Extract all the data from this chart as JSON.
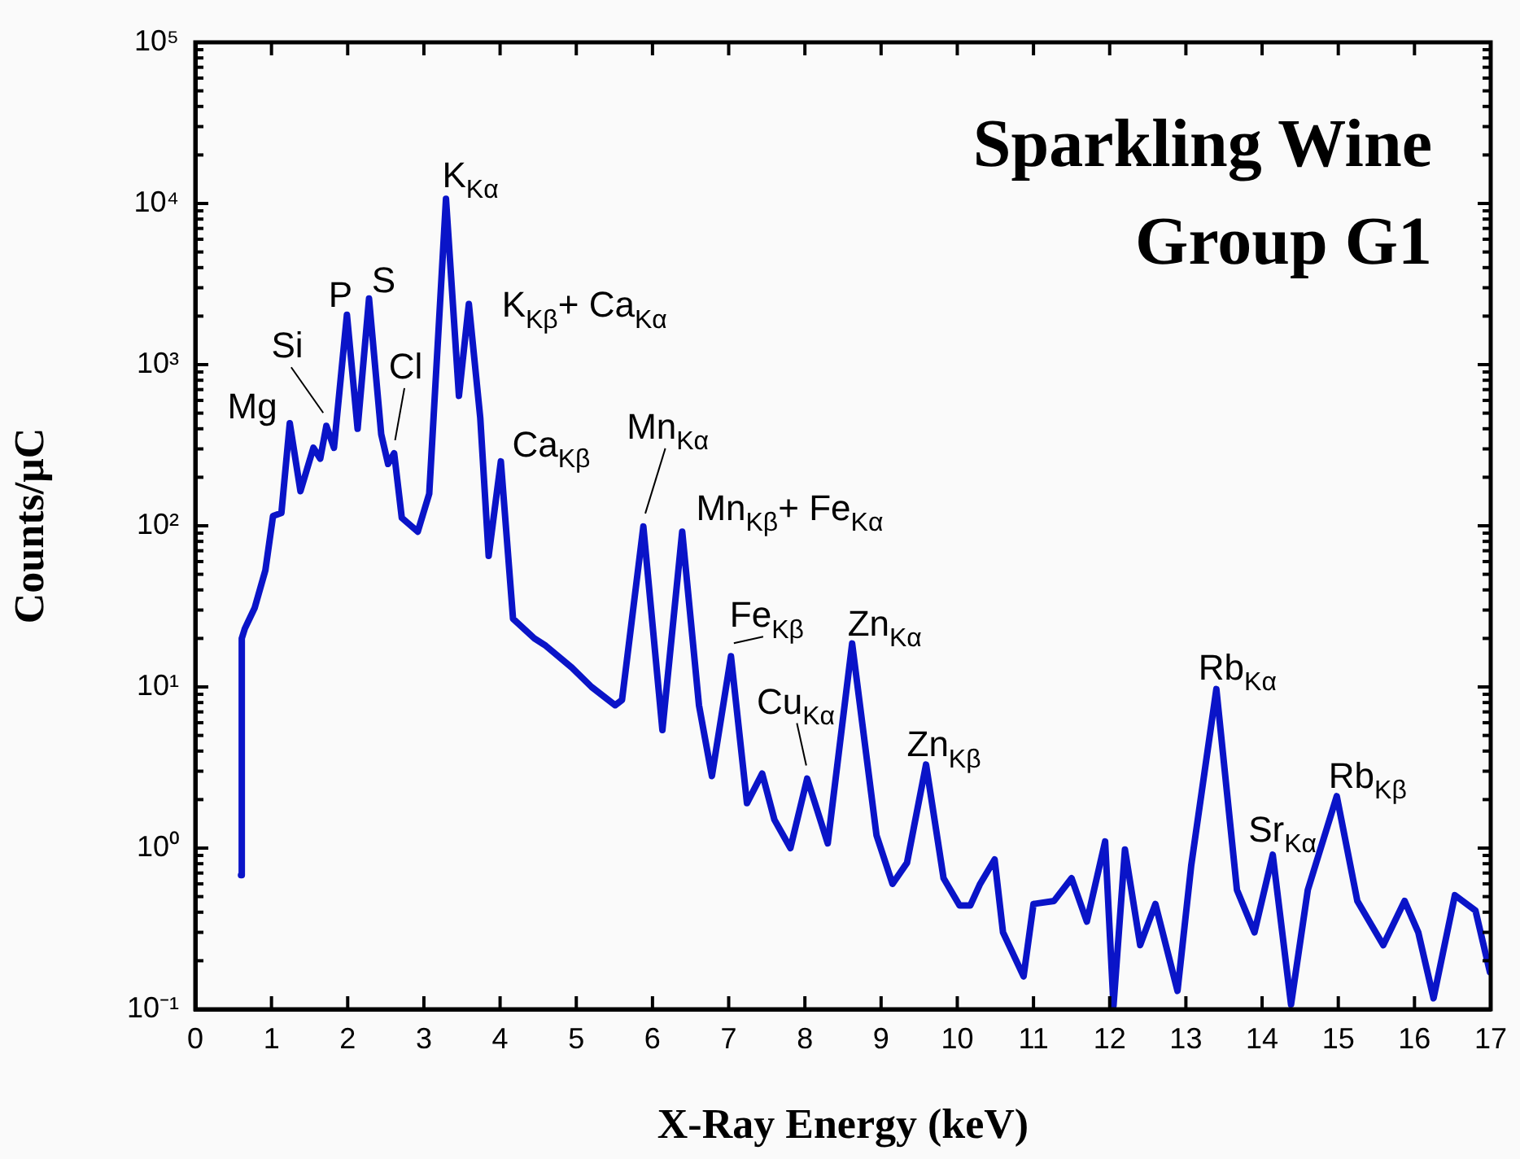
{
  "chart_data": {
    "type": "line",
    "title": "Sparkling Wine",
    "subtitle": "Group G1",
    "xlabel": "X-Ray Energy (keV)",
    "ylabel": "Counts/μC",
    "x": [
      0.6,
      0.61,
      0.65,
      0.78,
      0.92,
      1.02,
      1.13,
      1.24,
      1.38,
      1.55,
      1.64,
      1.72,
      1.82,
      1.99,
      2.13,
      2.28,
      2.44,
      2.53,
      2.61,
      2.71,
      2.92,
      3.07,
      3.29,
      3.46,
      3.59,
      3.74,
      3.85,
      4.01,
      4.17,
      4.45,
      4.6,
      4.94,
      5.2,
      5.51,
      5.6,
      5.88,
      6.13,
      6.39,
      6.61,
      6.78,
      7.03,
      7.24,
      7.44,
      7.6,
      7.81,
      8.03,
      8.3,
      8.62,
      8.94,
      9.15,
      9.34,
      9.59,
      9.82,
      10.03,
      10.17,
      10.3,
      10.49,
      10.6,
      10.87,
      11.0,
      11.27,
      11.5,
      11.7,
      11.94,
      12.05,
      12.2,
      12.4,
      12.6,
      12.89,
      13.07,
      13.4,
      13.67,
      13.9,
      14.14,
      14.38,
      14.6,
      14.98,
      15.25,
      15.59,
      15.87,
      16.05,
      16.25,
      16.53,
      16.8,
      16.99
    ],
    "series": [
      {
        "color": "#0a14c8",
        "values": [
          0.68,
          20,
          23,
          31,
          53,
          115,
          120,
          433,
          164,
          305,
          261,
          417,
          305,
          2040,
          400,
          2570,
          370,
          242,
          282,
          112,
          92,
          158,
          10700,
          640,
          2380,
          466,
          65,
          251,
          26.5,
          20,
          18,
          13.2,
          10,
          7.7,
          8.3,
          99,
          5.4,
          92,
          7.7,
          2.8,
          15.5,
          1.9,
          2.9,
          1.5,
          1.0,
          2.7,
          1.07,
          18.6,
          1.2,
          0.6,
          0.81,
          3.3,
          0.65,
          0.44,
          0.44,
          0.6,
          0.85,
          0.3,
          0.16,
          0.45,
          0.47,
          0.65,
          0.35,
          1.1,
          0.105,
          0.98,
          0.25,
          0.45,
          0.13,
          0.78,
          9.7,
          0.55,
          0.3,
          0.91,
          0.107,
          0.55,
          2.1,
          0.47,
          0.25,
          0.47,
          0.3,
          0.117,
          0.51,
          0.41,
          0.17
        ]
      }
    ],
    "xlim": [
      0,
      17
    ],
    "xticks": [
      0,
      1,
      2,
      3,
      4,
      5,
      6,
      7,
      8,
      9,
      10,
      11,
      12,
      13,
      14,
      15,
      16,
      17
    ],
    "ylim": [
      0.1,
      100000
    ],
    "yticks": [
      {
        "value": 0.1,
        "label": "10⁻¹"
      },
      {
        "value": 0.2,
        "label": null
      },
      {
        "value": 0.3,
        "label": null
      },
      {
        "value": 0.4,
        "label": null
      },
      {
        "value": 0.5,
        "label": null
      },
      {
        "value": 0.6,
        "label": null
      },
      {
        "value": 0.7,
        "label": null
      },
      {
        "value": 0.8,
        "label": null
      },
      {
        "value": 0.9,
        "label": null
      },
      {
        "value": 1,
        "label": "10⁰"
      },
      {
        "value": 2,
        "label": null
      },
      {
        "value": 3,
        "label": null
      },
      {
        "value": 4,
        "label": null
      },
      {
        "value": 5,
        "label": null
      },
      {
        "value": 6,
        "label": null
      },
      {
        "value": 7,
        "label": null
      },
      {
        "value": 8,
        "label": null
      },
      {
        "value": 9,
        "label": null
      },
      {
        "value": 10,
        "label": "10¹"
      },
      {
        "value": 20,
        "label": null
      },
      {
        "value": 30,
        "label": null
      },
      {
        "value": 40,
        "label": null
      },
      {
        "value": 50,
        "label": null
      },
      {
        "value": 60,
        "label": null
      },
      {
        "value": 70,
        "label": null
      },
      {
        "value": 80,
        "label": null
      },
      {
        "value": 90,
        "label": null
      },
      {
        "value": 100,
        "label": "10²"
      },
      {
        "value": 200,
        "label": null
      },
      {
        "value": 300,
        "label": null
      },
      {
        "value": 400,
        "label": null
      },
      {
        "value": 500,
        "label": null
      },
      {
        "value": 600,
        "label": null
      },
      {
        "value": 700,
        "label": null
      },
      {
        "value": 800,
        "label": null
      },
      {
        "value": 900,
        "label": null
      },
      {
        "value": 1000,
        "label": "10³"
      },
      {
        "value": 2000,
        "label": null
      },
      {
        "value": 3000,
        "label": null
      },
      {
        "value": 4000,
        "label": null
      },
      {
        "value": 5000,
        "label": null
      },
      {
        "value": 6000,
        "label": null
      },
      {
        "value": 7000,
        "label": null
      },
      {
        "value": 8000,
        "label": null
      },
      {
        "value": 9000,
        "label": null
      },
      {
        "value": 10000,
        "label": "10⁴"
      },
      {
        "value": 20000,
        "label": null
      },
      {
        "value": 30000,
        "label": null
      },
      {
        "value": 40000,
        "label": null
      },
      {
        "value": 50000,
        "label": null
      },
      {
        "value": 60000,
        "label": null
      },
      {
        "value": 70000,
        "label": null
      },
      {
        "value": 80000,
        "label": null
      },
      {
        "value": 90000,
        "label": null
      },
      {
        "value": 100000,
        "label": "10⁵"
      }
    ],
    "log": "y",
    "grid": false,
    "legend": false,
    "marker": "none",
    "line_style": "solid",
    "annotations": [
      {
        "text": "Mg",
        "x": 1.24,
        "y": 433
      },
      {
        "text": "Si",
        "x": 1.72,
        "y": 417
      },
      {
        "text": "P",
        "x": 1.99,
        "y": 2040
      },
      {
        "text": "S",
        "x": 2.28,
        "y": 2570
      },
      {
        "text": "Cl",
        "x": 2.61,
        "y": 282
      },
      {
        "text": "K$_{Kα}$",
        "x": 3.29,
        "y": 10700
      },
      {
        "text": "K$_{Kβ}$+ Ca$_{Kα}$",
        "x": 3.59,
        "y": 2380
      },
      {
        "text": "Ca$_{Kβ}$",
        "x": 4.01,
        "y": 251
      },
      {
        "text": "Mn$_{Kα}$",
        "x": 5.88,
        "y": 99
      },
      {
        "text": "Mn$_{Kβ}$+ Fe$_{Kα}$",
        "x": 6.39,
        "y": 92
      },
      {
        "text": "Fe$_{Kβ}$",
        "x": 7.03,
        "y": 15.5
      },
      {
        "text": "Cu$_{Kα}$",
        "x": 8.03,
        "y": 2.7
      },
      {
        "text": "Zn$_{Kα}$",
        "x": 8.62,
        "y": 18.6
      },
      {
        "text": "Zn$_{Kβ}$",
        "x": 9.59,
        "y": 3.3
      },
      {
        "text": "Rb$_{Kα}$",
        "x": 13.4,
        "y": 9.7
      },
      {
        "text": "Sr$_{Kα}$",
        "x": 14.14,
        "y": 0.91
      },
      {
        "text": "Rb$_{Kβ}$",
        "x": 14.98,
        "y": 2.1
      }
    ]
  }
}
